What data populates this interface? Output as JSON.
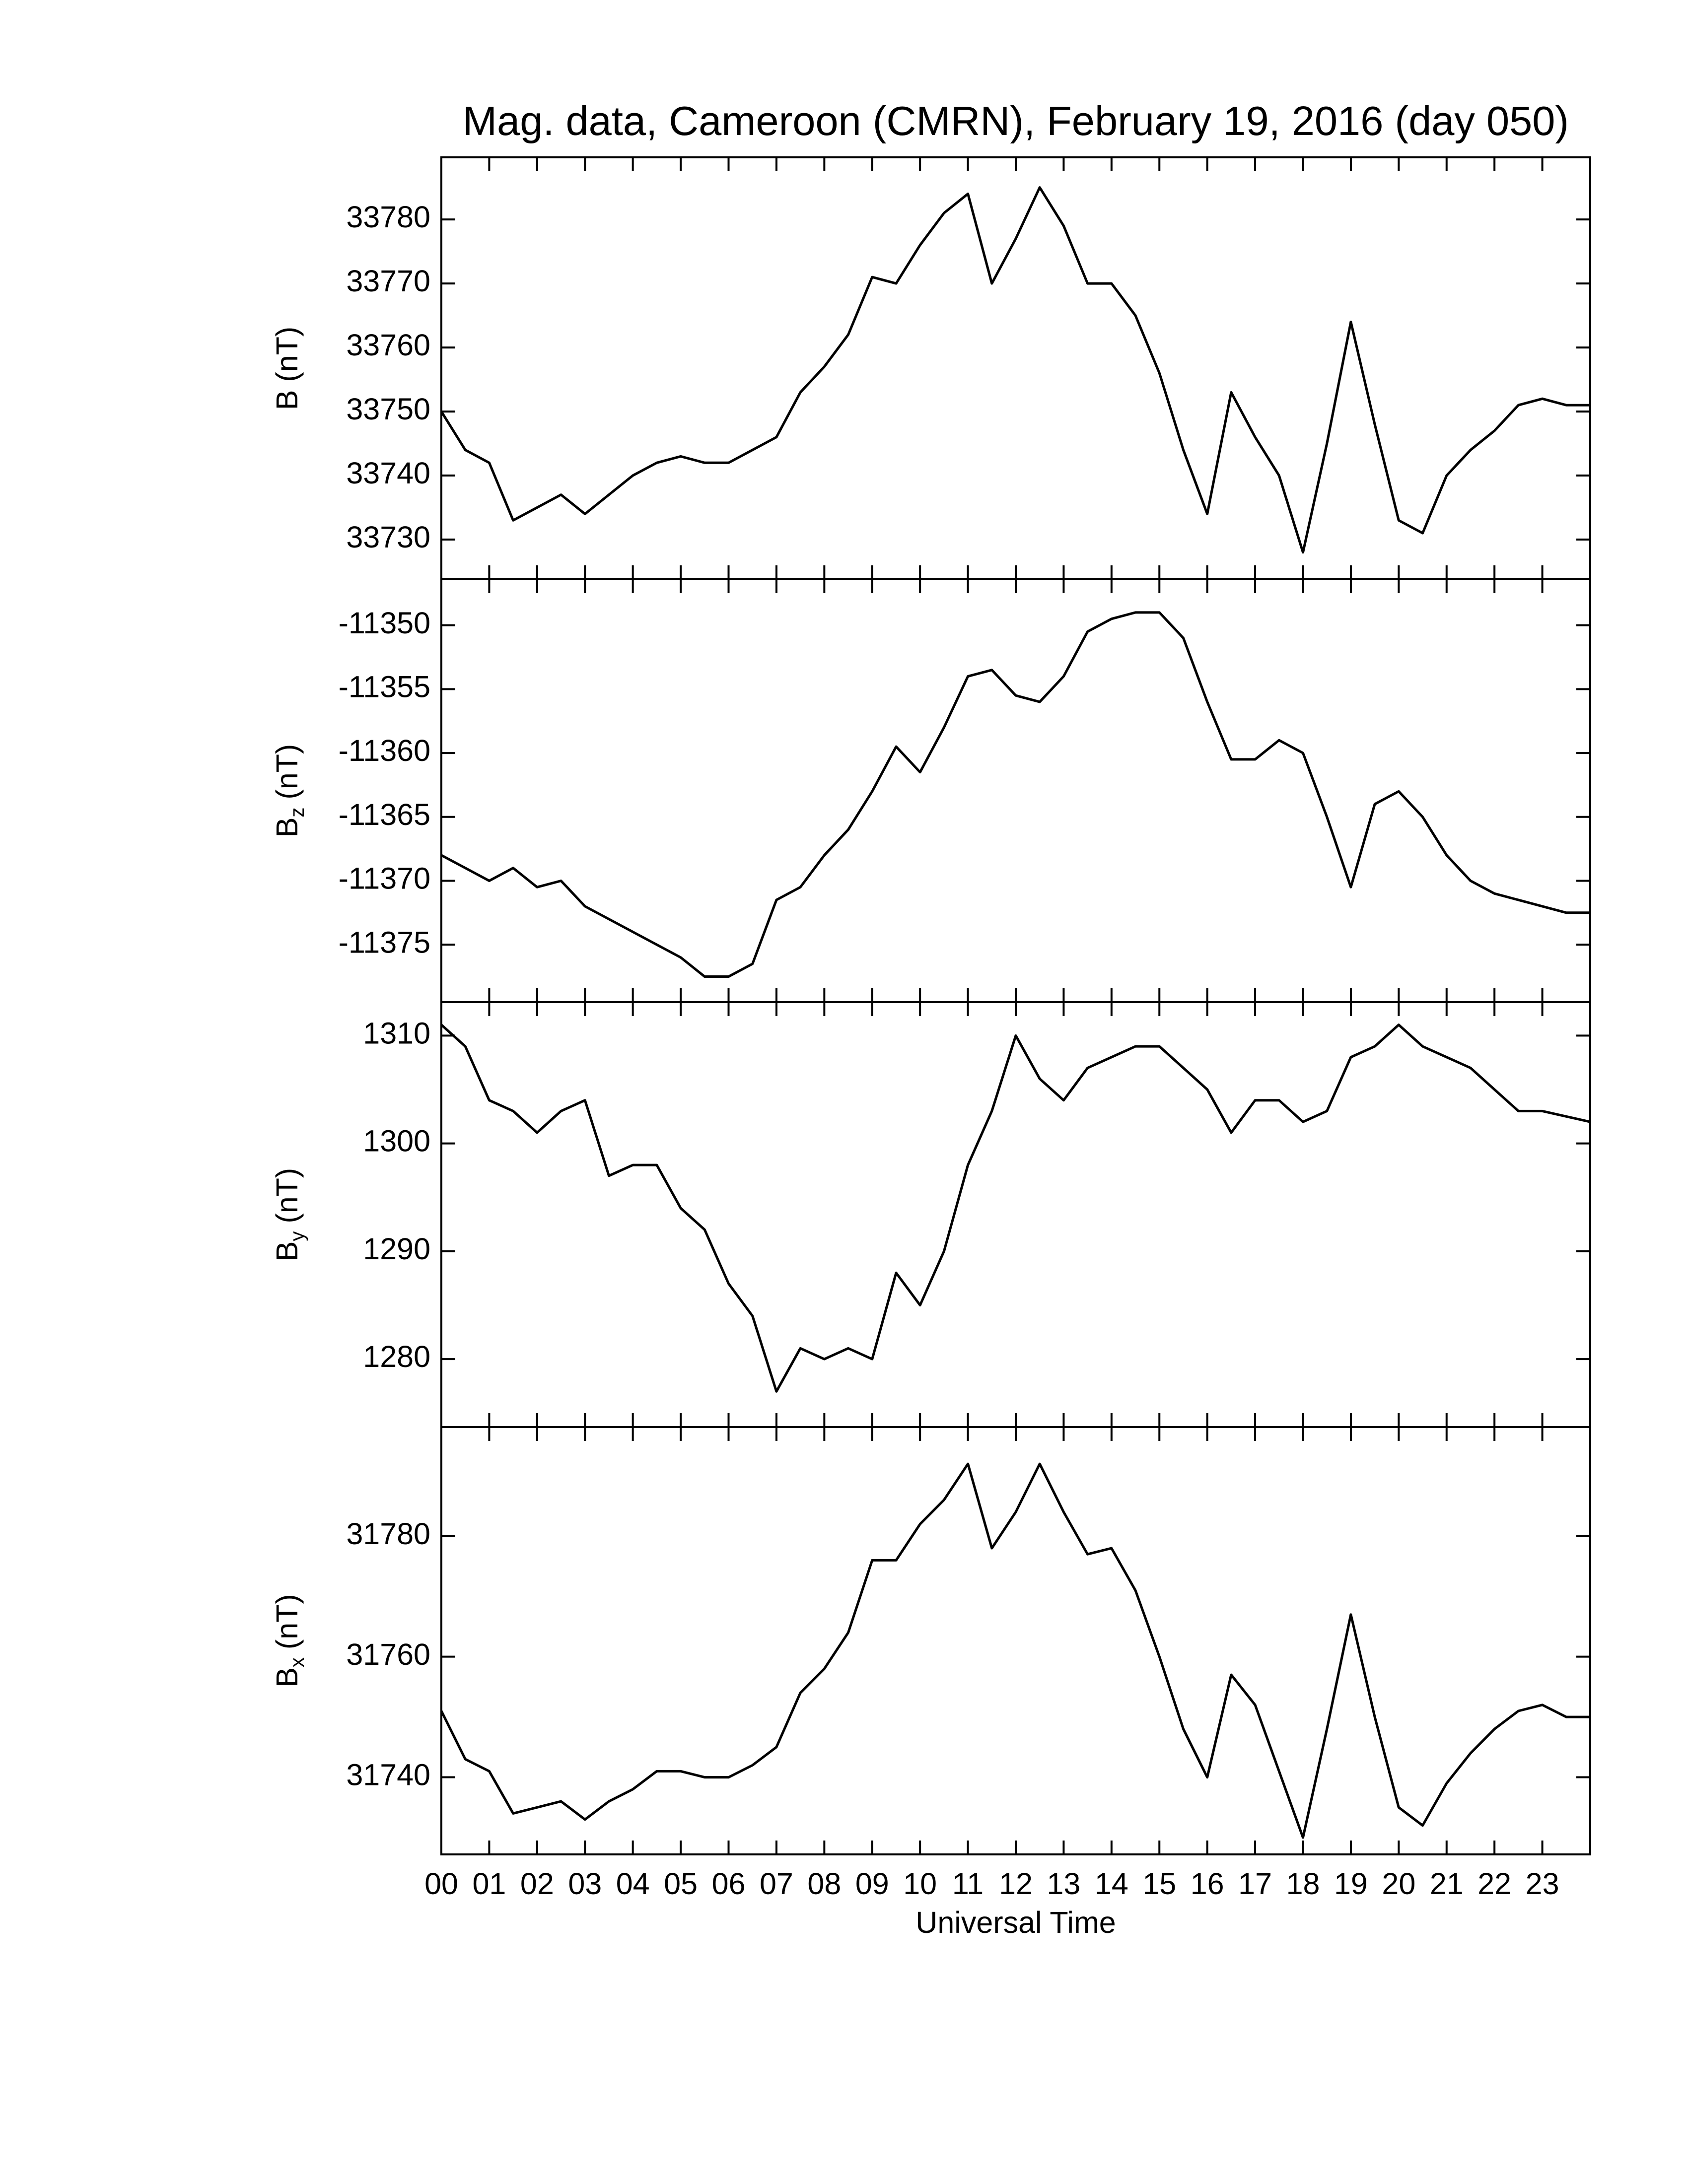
{
  "chart_data": [
    {
      "type": "line",
      "title": "Mag. data, Cameroon (CMRN), February 19, 2016 (day 050)",
      "y_label": {
        "main": "B",
        "sub": "",
        "unit": "(nT)"
      },
      "color": "#000000",
      "xlim": [
        0,
        24
      ],
      "ylim": [
        33723.8,
        33789.7
      ],
      "yticks": [
        33730,
        33740,
        33750,
        33760,
        33770,
        33780
      ],
      "x": [
        0,
        0.5,
        1,
        1.5,
        2,
        2.5,
        3,
        3.5,
        4,
        4.5,
        5,
        5.5,
        6,
        6.5,
        7,
        7.5,
        8,
        8.5,
        9,
        9.5,
        10,
        10.5,
        11,
        11.5,
        12,
        12.5,
        13,
        13.5,
        14,
        14.5,
        15,
        15.5,
        16,
        16.5,
        17,
        17.5,
        18,
        18.5,
        19,
        19.5,
        20,
        20.5,
        21,
        21.5,
        22,
        22.5,
        23,
        23.5,
        24
      ],
      "values": [
        33750,
        33744,
        33742,
        33733,
        33735,
        33737,
        33734,
        33737,
        33740,
        33742,
        33743,
        33742,
        33742,
        33744,
        33746,
        33753,
        33757,
        33762,
        33771,
        33770,
        33776,
        33781,
        33784,
        33770,
        33777,
        33785,
        33779,
        33770,
        33770,
        33765,
        33756,
        33744,
        33734,
        33753,
        33746,
        33740,
        33728,
        33745,
        33764,
        33748,
        33733,
        33731,
        33740,
        33744,
        33747,
        33751,
        33752,
        33751,
        33751
      ]
    },
    {
      "type": "line",
      "y_label": {
        "main": "B",
        "sub": "z",
        "unit": "(nT)"
      },
      "color": "#000000",
      "xlim": [
        0,
        24
      ],
      "ylim": [
        -11379.5,
        -11346.4
      ],
      "yticks": [
        -11375,
        -11370,
        -11365,
        -11360,
        -11355,
        -11350
      ],
      "x": [
        0,
        0.5,
        1,
        1.5,
        2,
        2.5,
        3,
        3.5,
        4,
        4.5,
        5,
        5.5,
        6,
        6.5,
        7,
        7.5,
        8,
        8.5,
        9,
        9.5,
        10,
        10.5,
        11,
        11.5,
        12,
        12.5,
        13,
        13.5,
        14,
        14.5,
        15,
        15.5,
        16,
        16.5,
        17,
        17.5,
        18,
        18.5,
        19,
        19.5,
        20,
        20.5,
        21,
        21.5,
        22,
        22.5,
        23,
        23.5,
        24
      ],
      "values": [
        -11368,
        -11369,
        -11370,
        -11369,
        -11370.5,
        -11370,
        -11372,
        -11373,
        -11374,
        -11375,
        -11376,
        -11377.5,
        -11377.5,
        -11376.5,
        -11371.5,
        -11370.5,
        -11368,
        -11366,
        -11363,
        -11359.5,
        -11361.5,
        -11358,
        -11354,
        -11353.5,
        -11355.5,
        -11356,
        -11354,
        -11350.5,
        -11349.5,
        -11349,
        -11349,
        -11351,
        -11356,
        -11360.5,
        -11360.5,
        -11359,
        -11360,
        -11365,
        -11370.5,
        -11364,
        -11363,
        -11365,
        -11368,
        -11370,
        -11371,
        -11371.5,
        -11372,
        -11372.5,
        -11372.5
      ]
    },
    {
      "type": "line",
      "y_label": {
        "main": "B",
        "sub": "y",
        "unit": "(nT)"
      },
      "color": "#000000",
      "xlim": [
        0,
        24
      ],
      "ylim": [
        1273.7,
        1313.1
      ],
      "yticks": [
        1280,
        1290,
        1300,
        1310
      ],
      "x": [
        0,
        0.5,
        1,
        1.5,
        2,
        2.5,
        3,
        3.5,
        4,
        4.5,
        5,
        5.5,
        6,
        6.5,
        7,
        7.5,
        8,
        8.5,
        9,
        9.5,
        10,
        10.5,
        11,
        11.5,
        12,
        12.5,
        13,
        13.5,
        14,
        14.5,
        15,
        15.5,
        16,
        16.5,
        17,
        17.5,
        18,
        18.5,
        19,
        19.5,
        20,
        20.5,
        21,
        21.5,
        22,
        22.5,
        23,
        23.5,
        24
      ],
      "values": [
        1311,
        1309,
        1304,
        1303,
        1301,
        1303,
        1304,
        1297,
        1298,
        1298,
        1294,
        1292,
        1287,
        1284,
        1277,
        1281,
        1280,
        1281,
        1280,
        1288,
        1285,
        1290,
        1298,
        1303,
        1310,
        1306,
        1304,
        1307,
        1308,
        1309,
        1309,
        1307,
        1305,
        1301,
        1304,
        1304,
        1302,
        1303,
        1308,
        1309,
        1311,
        1309,
        1308,
        1307,
        1305,
        1303,
        1303,
        1302.5,
        1302
      ]
    },
    {
      "type": "line",
      "y_label": {
        "main": "B",
        "sub": "x",
        "unit": "(nT)"
      },
      "x_label": "Universal Time",
      "color": "#000000",
      "xlim": [
        0,
        24
      ],
      "ylim": [
        31727.2,
        31798.1
      ],
      "yticks": [
        31740,
        31760,
        31780
      ],
      "xticks": [
        {
          "value": 0,
          "label": "00"
        },
        {
          "value": 1,
          "label": "01"
        },
        {
          "value": 2,
          "label": "02"
        },
        {
          "value": 3,
          "label": "03"
        },
        {
          "value": 4,
          "label": "04"
        },
        {
          "value": 5,
          "label": "05"
        },
        {
          "value": 6,
          "label": "06"
        },
        {
          "value": 7,
          "label": "07"
        },
        {
          "value": 8,
          "label": "08"
        },
        {
          "value": 9,
          "label": "09"
        },
        {
          "value": 10,
          "label": "10"
        },
        {
          "value": 11,
          "label": "11"
        },
        {
          "value": 12,
          "label": "12"
        },
        {
          "value": 13,
          "label": "13"
        },
        {
          "value": 14,
          "label": "14"
        },
        {
          "value": 15,
          "label": "15"
        },
        {
          "value": 16,
          "label": "16"
        },
        {
          "value": 17,
          "label": "17"
        },
        {
          "value": 18,
          "label": "18"
        },
        {
          "value": 19,
          "label": "19"
        },
        {
          "value": 20,
          "label": "20"
        },
        {
          "value": 21,
          "label": "21"
        },
        {
          "value": 22,
          "label": "22"
        },
        {
          "value": 23,
          "label": "23"
        }
      ],
      "x": [
        0,
        0.5,
        1,
        1.5,
        2,
        2.5,
        3,
        3.5,
        4,
        4.5,
        5,
        5.5,
        6,
        6.5,
        7,
        7.5,
        8,
        8.5,
        9,
        9.5,
        10,
        10.5,
        11,
        11.5,
        12,
        12.5,
        13,
        13.5,
        14,
        14.5,
        15,
        15.5,
        16,
        16.5,
        17,
        17.5,
        18,
        18.5,
        19,
        19.5,
        20,
        20.5,
        21,
        21.5,
        22,
        22.5,
        23,
        23.5,
        24
      ],
      "values": [
        31751,
        31743,
        31741,
        31734,
        31735,
        31736,
        31733,
        31736,
        31738,
        31741,
        31741,
        31740,
        31740,
        31742,
        31745,
        31754,
        31758,
        31764,
        31776,
        31776,
        31782,
        31786,
        31792,
        31778,
        31784,
        31792,
        31784,
        31777,
        31778,
        31771,
        31760,
        31748,
        31740,
        31757,
        31752,
        31741,
        31730,
        31748,
        31767,
        31750,
        31735,
        31732,
        31739,
        31744,
        31748,
        31751,
        31752,
        31750,
        31750
      ]
    }
  ]
}
